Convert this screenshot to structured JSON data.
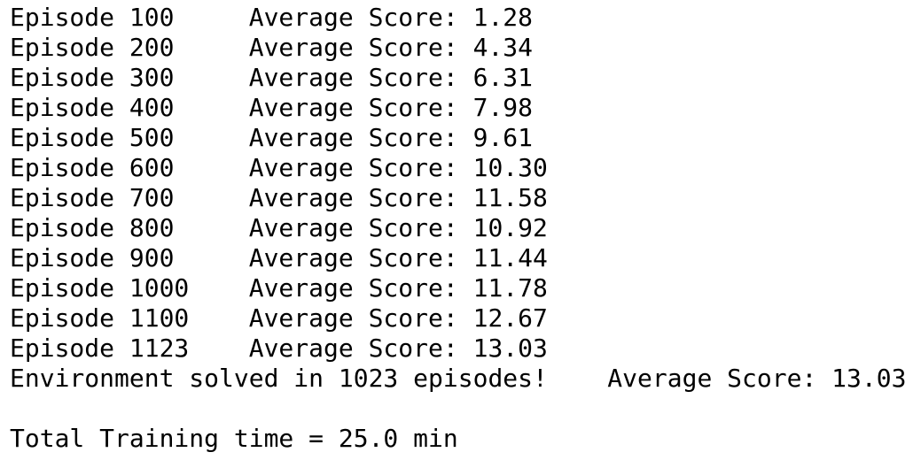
{
  "log_lines": [
    "Episode 100     Average Score: 1.28",
    "Episode 200     Average Score: 4.34",
    "Episode 300     Average Score: 6.31",
    "Episode 400     Average Score: 7.98",
    "Episode 500     Average Score: 9.61",
    "Episode 600     Average Score: 10.30",
    "Episode 700     Average Score: 11.58",
    "Episode 800     Average Score: 10.92",
    "Episode 900     Average Score: 11.44",
    "Episode 1000    Average Score: 11.78",
    "Episode 1100    Average Score: 12.67",
    "Episode 1123    Average Score: 13.03",
    "Environment solved in 1023 episodes!    Average Score: 13.03"
  ],
  "training_time_line": "Total Training time = 25.0 min"
}
